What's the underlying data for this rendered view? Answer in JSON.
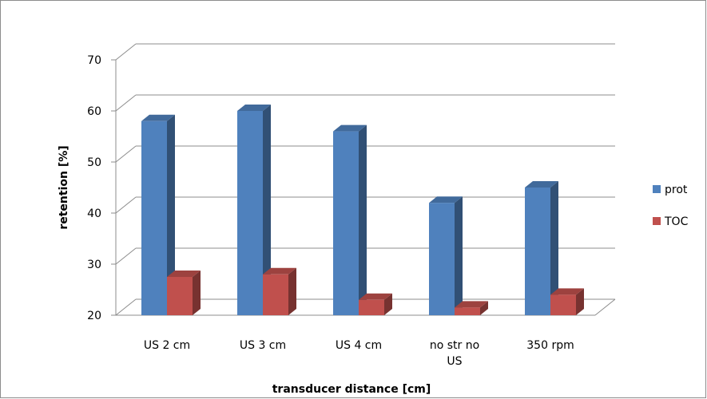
{
  "chart_data": {
    "type": "bar",
    "title": "",
    "xlabel": "transducer distance [cm]",
    "ylabel": "retention [%]",
    "ylim": [
      20,
      70
    ],
    "yticks": [
      20,
      30,
      40,
      50,
      60,
      70
    ],
    "categories": [
      [
        "US 2 cm"
      ],
      [
        "US 3 cm"
      ],
      [
        "US 4 cm"
      ],
      [
        "no str no",
        "US"
      ],
      [
        "350 rpm"
      ]
    ],
    "series": [
      {
        "name": "prot",
        "values": [
          58,
          60,
          56,
          42,
          45
        ],
        "color": "#4f81bd"
      },
      {
        "name": "TOC",
        "values": [
          27.5,
          28,
          23,
          21.5,
          24
        ],
        "color": "#c0504d"
      }
    ],
    "grid": true,
    "legend_position": "right",
    "style": "3d-clustered-column"
  }
}
